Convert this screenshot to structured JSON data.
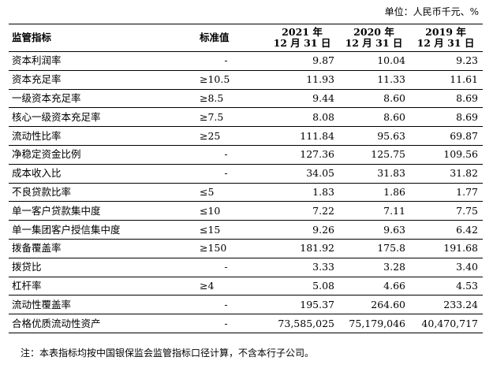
{
  "unit_label": "单位：人民币千元、%",
  "headers": {
    "name": "监管指标",
    "standard": "标准值",
    "years": [
      {
        "line1": "2021 年",
        "line2": "12 月 31 日"
      },
      {
        "line1": "2020 年",
        "line2": "12 月 31 日"
      },
      {
        "line1": "2019 年",
        "line2": "12 月 31 日"
      }
    ]
  },
  "rows": [
    {
      "name": "资本利润率",
      "standard": "-",
      "v2021": "9.87",
      "v2020": "10.04",
      "v2019": "9.23"
    },
    {
      "name": "资本充足率",
      "standard": "≥10.5",
      "v2021": "11.93",
      "v2020": "11.33",
      "v2019": "11.61"
    },
    {
      "name": "一级资本充足率",
      "standard": "≥8.5",
      "v2021": "9.44",
      "v2020": "8.60",
      "v2019": "8.69"
    },
    {
      "name": "核心一级资本充足率",
      "standard": "≥7.5",
      "v2021": "8.08",
      "v2020": "8.60",
      "v2019": "8.69"
    },
    {
      "name": "流动性比率",
      "standard": "≥25",
      "v2021": "111.84",
      "v2020": "95.63",
      "v2019": "69.87"
    },
    {
      "name": "净稳定资金比例",
      "standard": "-",
      "v2021": "127.36",
      "v2020": "125.75",
      "v2019": "109.56"
    },
    {
      "name": "成本收入比",
      "standard": "-",
      "v2021": "34.05",
      "v2020": "31.83",
      "v2019": "31.82"
    },
    {
      "name": "不良贷款比率",
      "standard": "≤5",
      "v2021": "1.83",
      "v2020": "1.86",
      "v2019": "1.77"
    },
    {
      "name": "单一客户贷款集中度",
      "standard": "≤10",
      "v2021": "7.22",
      "v2020": "7.11",
      "v2019": "7.75"
    },
    {
      "name": "单一集团客户授信集中度",
      "standard": "≤15",
      "v2021": "9.26",
      "v2020": "9.63",
      "v2019": "6.42"
    },
    {
      "name": "拨备覆盖率",
      "standard": "≥150",
      "v2021": "181.92",
      "v2020": "175.8",
      "v2019": "191.68"
    },
    {
      "name": "拨贷比",
      "standard": "-",
      "v2021": "3.33",
      "v2020": "3.28",
      "v2019": "3.40"
    },
    {
      "name": "杠杆率",
      "standard": "≥4",
      "v2021": "5.08",
      "v2020": "4.66",
      "v2019": "4.53"
    },
    {
      "name": "流动性覆盖率",
      "standard": "-",
      "v2021": "195.37",
      "v2020": "264.60",
      "v2019": "233.24"
    },
    {
      "name": "合格优质流动性资产",
      "standard": "-",
      "v2021": "73,585,025",
      "v2020": "75,179,046",
      "v2019": "40,470,717"
    }
  ],
  "footnote": "注：本表指标均按中国银保监会监管指标口径计算，不含本行子公司。"
}
